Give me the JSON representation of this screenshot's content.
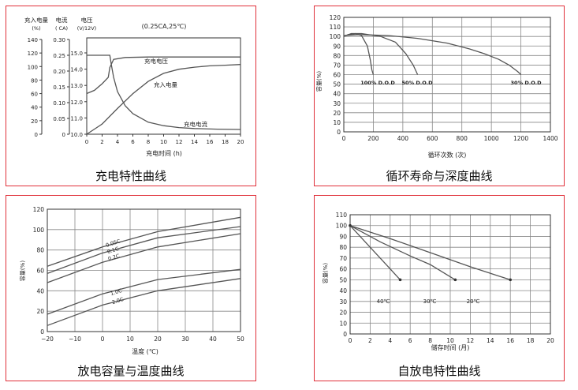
{
  "panels": {
    "charge": {
      "caption": "充电特性曲线"
    },
    "cycle": {
      "caption": "循环寿命与深度曲线"
    },
    "temp": {
      "caption": "放电容量与温度曲线"
    },
    "selfdis": {
      "caption": "自放电特性曲线"
    }
  },
  "chart_data": [
    {
      "type": "line",
      "id": "charge",
      "title": "充电特性曲线",
      "condition": "(0.25CA,25℃)",
      "xlabel": "充电时间 (h)",
      "x_ticks": [
        "0",
        "2",
        "4",
        "6",
        "8",
        "10",
        "12",
        "14",
        "16",
        "18",
        "20"
      ],
      "xlim": [
        0,
        20
      ],
      "axes_labels": {
        "capacity": [
          "充入电量",
          "(%)"
        ],
        "current": [
          "电流",
          "( CA)"
        ],
        "voltage": [
          "电压",
          "(V/12V)"
        ]
      },
      "capacity_ticks": [
        "140",
        "120",
        "100",
        "80",
        "60",
        "40",
        "20",
        "0"
      ],
      "current_ticks": [
        "0.30",
        "0.25",
        "0.20",
        "0.15",
        "0.10",
        "0.05",
        "0"
      ],
      "voltage_ticks": [
        "15.0",
        "14.0",
        "13.0",
        "12.0",
        "11.0",
        "10.0"
      ],
      "capacity_range": [
        0,
        140
      ],
      "current_range": [
        0,
        0.3
      ],
      "voltage_range": [
        10.0,
        15.0
      ],
      "series": [
        {
          "name": "充电电压",
          "axis": "voltage",
          "x": [
            0,
            1,
            2,
            2.8,
            3.0,
            3.2,
            3.5,
            5,
            8,
            12,
            16,
            20
          ],
          "y": [
            12.5,
            12.7,
            13.1,
            13.5,
            14.1,
            14.3,
            14.6,
            14.72,
            14.75,
            14.75,
            14.75,
            14.75
          ]
        },
        {
          "name": "充入电量",
          "axis": "capacity",
          "x": [
            0,
            2,
            4,
            6,
            8,
            10,
            12,
            14,
            16,
            18,
            20
          ],
          "y": [
            0,
            15,
            38,
            60,
            78,
            90,
            96,
            99,
            101,
            102,
            103
          ]
        },
        {
          "name": "充电电流",
          "axis": "current",
          "x": [
            0,
            2,
            3.0,
            3.2,
            3.5,
            4,
            5,
            6,
            8,
            10,
            12,
            14,
            17,
            20
          ],
          "y": [
            0.25,
            0.25,
            0.25,
            0.22,
            0.18,
            0.135,
            0.09,
            0.065,
            0.038,
            0.027,
            0.021,
            0.018,
            0.016,
            0.015
          ]
        }
      ]
    },
    {
      "type": "line",
      "id": "cycle",
      "title": "循环寿命与深度曲线",
      "xlabel": "循环次数 (次)",
      "ylabel": "容量(%)",
      "xlim": [
        0,
        1400
      ],
      "ylim": [
        0,
        120
      ],
      "x_ticks": [
        "0",
        "200",
        "400",
        "600",
        "800",
        "1000",
        "1200",
        "1400"
      ],
      "y_ticks": [
        "0",
        "10",
        "20",
        "30",
        "40",
        "50",
        "60",
        "70",
        "80",
        "90",
        "100",
        "110",
        "120"
      ],
      "series": [
        {
          "name": "100% D.O.D",
          "x": [
            0,
            30,
            80,
            120,
            160,
            180,
            190,
            200
          ],
          "y": [
            100,
            102,
            103,
            101,
            90,
            75,
            65,
            60
          ]
        },
        {
          "name": "50% D.O.D",
          "x": [
            0,
            50,
            120,
            250,
            350,
            420,
            470,
            500
          ],
          "y": [
            100,
            103,
            103,
            100,
            94,
            82,
            70,
            60
          ]
        },
        {
          "name": "30% D.O.D",
          "x": [
            0,
            100,
            300,
            500,
            700,
            850,
            950,
            1050,
            1120,
            1180,
            1200
          ],
          "y": [
            101,
            102,
            101,
            98,
            93,
            87,
            82,
            76,
            70,
            63,
            60
          ]
        }
      ]
    },
    {
      "type": "line",
      "id": "temp",
      "title": "放电容量与温度曲线",
      "xlabel": "温度 (℃)",
      "ylabel": "容量(%)",
      "xlim": [
        -20,
        50
      ],
      "ylim": [
        0,
        120
      ],
      "x_ticks": [
        "−20",
        "−10",
        "0",
        "10",
        "20",
        "30",
        "40",
        "50"
      ],
      "y_ticks": [
        "0",
        "20",
        "40",
        "60",
        "80",
        "100",
        "120"
      ],
      "series": [
        {
          "name": "0.05C",
          "x": [
            -20,
            0,
            20,
            50
          ],
          "y": [
            64,
            83,
            98,
            112
          ]
        },
        {
          "name": "0.1C",
          "x": [
            -20,
            0,
            20,
            50
          ],
          "y": [
            57,
            77,
            92,
            103
          ]
        },
        {
          "name": "0.2C",
          "x": [
            -20,
            0,
            20,
            50
          ],
          "y": [
            48,
            68,
            83,
            96
          ]
        },
        {
          "name": "1.0C",
          "x": [
            -20,
            0,
            20,
            50
          ],
          "y": [
            17,
            37,
            51,
            61
          ]
        },
        {
          "name": "2.0C",
          "x": [
            -20,
            0,
            20,
            50
          ],
          "y": [
            6,
            26,
            40,
            52
          ]
        }
      ]
    },
    {
      "type": "line",
      "id": "selfdis",
      "title": "自放电特性曲线",
      "xlabel": "储存时间 (月)",
      "ylabel": "容量(%)",
      "xlim": [
        0,
        20
      ],
      "ylim": [
        0,
        110
      ],
      "x_ticks": [
        "0",
        "2",
        "4",
        "6",
        "8",
        "10",
        "12",
        "14",
        "16",
        "18",
        "20"
      ],
      "y_ticks": [
        "0",
        "10",
        "20",
        "30",
        "40",
        "50",
        "60",
        "70",
        "80",
        "90",
        "100",
        "110"
      ],
      "series": [
        {
          "name": "40℃",
          "x": [
            0,
            2,
            4,
            5
          ],
          "y": [
            100,
            80,
            60,
            50
          ]
        },
        {
          "name": "30℃",
          "x": [
            0,
            3,
            6,
            8,
            10.5
          ],
          "y": [
            100,
            85,
            72,
            64,
            50
          ]
        },
        {
          "name": "20℃",
          "x": [
            0,
            4,
            8,
            12,
            16
          ],
          "y": [
            100,
            88,
            75,
            62,
            50
          ]
        }
      ]
    }
  ]
}
